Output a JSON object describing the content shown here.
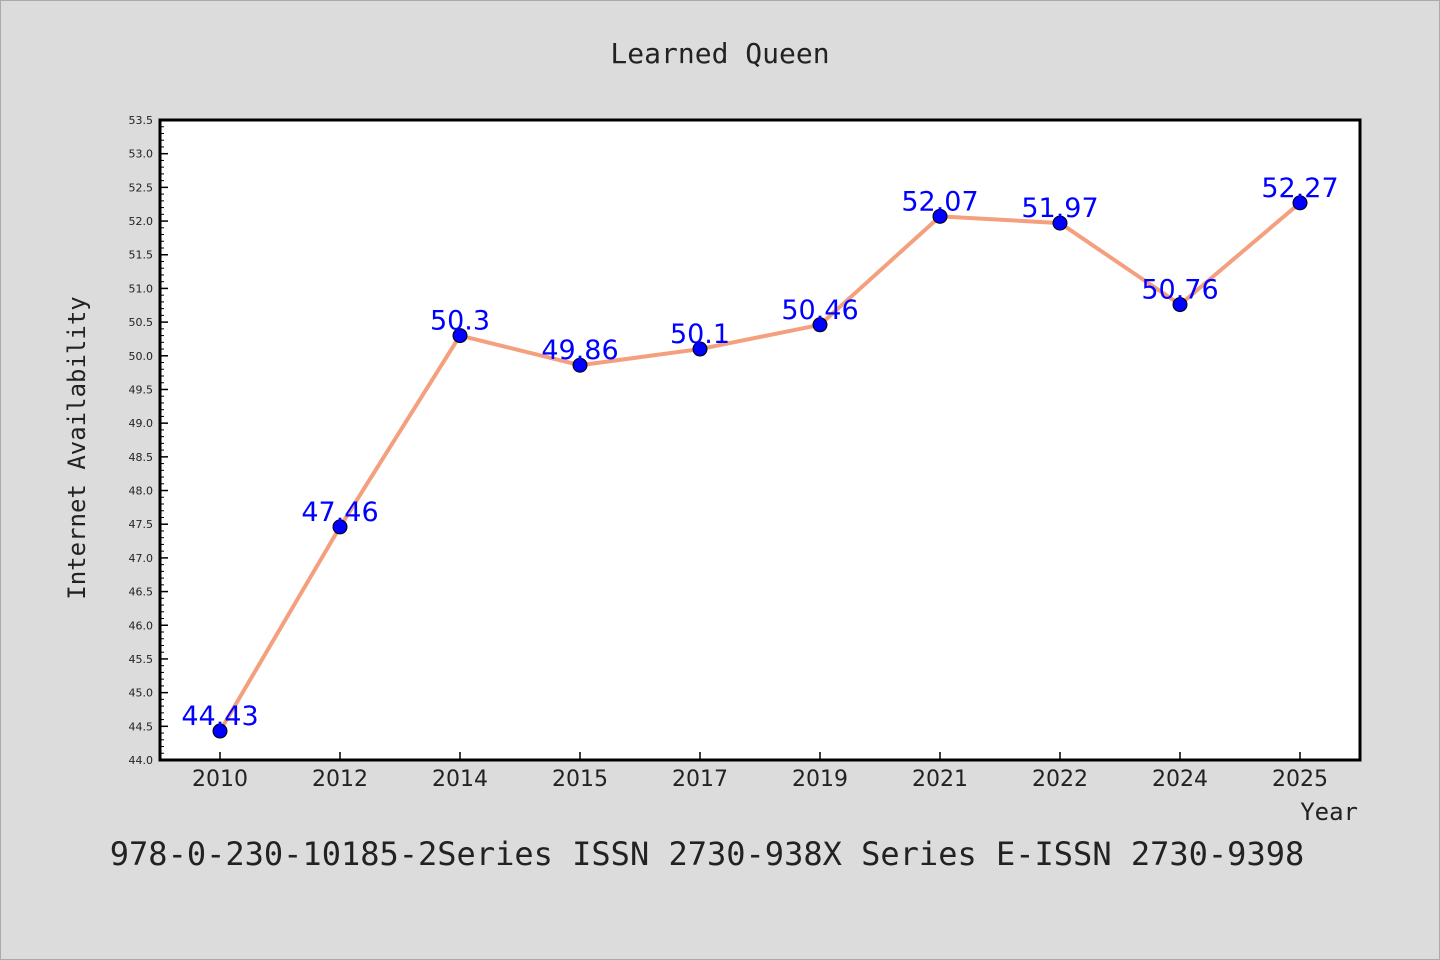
{
  "footer_text": "978-0-230-10185-2Series ISSN 2730-938X Series E-ISSN 2730-9398",
  "colors": {
    "background": "#dcdcdc",
    "plot_background": "#ffffff",
    "line": "#f4a07e",
    "marker": "#0000ff",
    "data_label": "#0000ff",
    "text": "#222222"
  },
  "chart_data": {
    "type": "line",
    "title": "Learned Queen",
    "xlabel": "Year",
    "ylabel": "Internet Availability",
    "categories": [
      "2010",
      "2012",
      "2014",
      "2015",
      "2017",
      "2019",
      "2021",
      "2022",
      "2024",
      "2025"
    ],
    "series": [
      {
        "values": [
          44.43,
          47.46,
          50.3,
          49.86,
          50.1,
          50.46,
          52.07,
          51.97,
          50.76,
          52.27
        ],
        "labels": [
          "44.43",
          "47.46",
          "50.3",
          "49.86",
          "50.1",
          "50.46",
          "52.07",
          "51.97",
          "50.76",
          "52.27"
        ]
      }
    ],
    "ylim": [
      44.0,
      53.5
    ],
    "yticks": [
      "44.0",
      "44.5",
      "45.0",
      "45.5",
      "46.0",
      "46.5",
      "47.0",
      "47.5",
      "48.0",
      "48.5",
      "49.0",
      "49.5",
      "50.0",
      "50.5",
      "51.0",
      "51.5",
      "52.0",
      "52.5",
      "53.0",
      "53.5"
    ],
    "grid": false,
    "legend": "none"
  }
}
